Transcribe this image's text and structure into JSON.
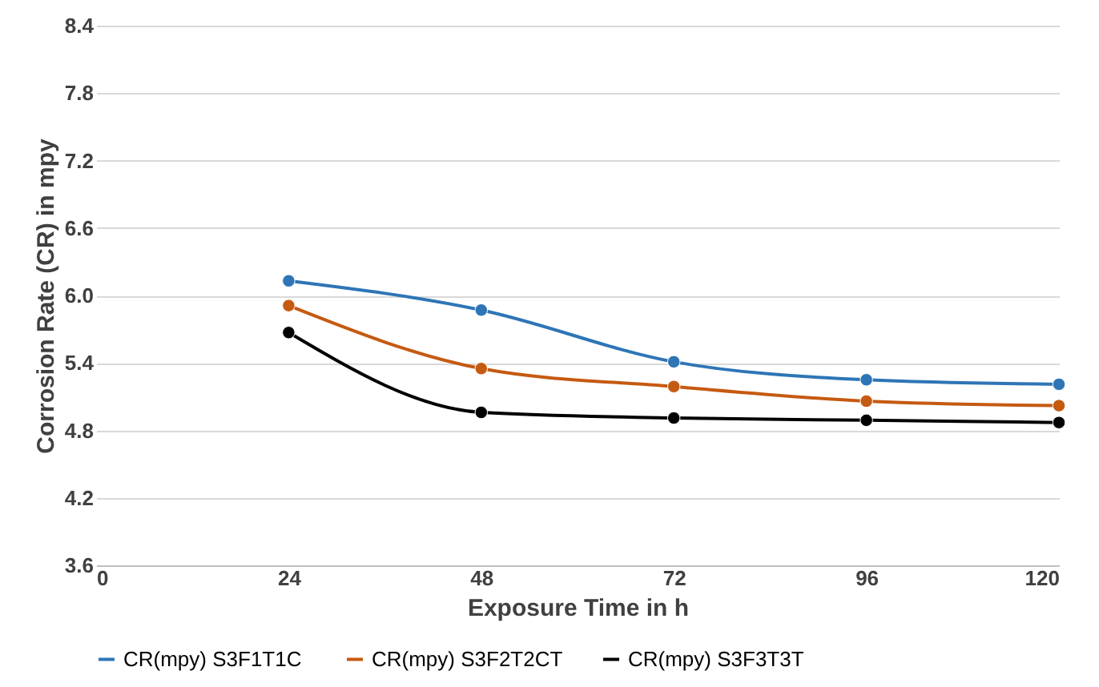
{
  "chart_data": {
    "type": "line",
    "xlabel": "Exposure Time in h",
    "ylabel": "Corrosion Rate (CR) in mpy",
    "x": [
      24,
      48,
      72,
      96,
      120
    ],
    "series": [
      {
        "name": "CR(mpy)  S3F1T1C",
        "color": "#2e75b6",
        "values": [
          6.13,
          5.87,
          5.41,
          5.25,
          5.21
        ]
      },
      {
        "name": "CR(mpy) S3F2T2CT",
        "color": "#c55a11",
        "values": [
          5.91,
          5.35,
          5.19,
          5.06,
          5.02
        ]
      },
      {
        "name": "CR(mpy) S3F3T3T",
        "color": "#000000",
        "values": [
          5.67,
          4.96,
          4.91,
          4.89,
          4.87
        ]
      }
    ],
    "xlim": [
      0,
      120
    ],
    "xticks": [
      0,
      24,
      48,
      72,
      96,
      120
    ],
    "ylim": [
      3.6,
      8.4
    ],
    "yticks": [
      3.6,
      4.2,
      4.8,
      5.4,
      {
        "value": 6,
        "label": "6.0"
      },
      6.6,
      7.2,
      7.8,
      8.4
    ],
    "grid": "y",
    "legend": "bottom",
    "marker": "circle"
  }
}
